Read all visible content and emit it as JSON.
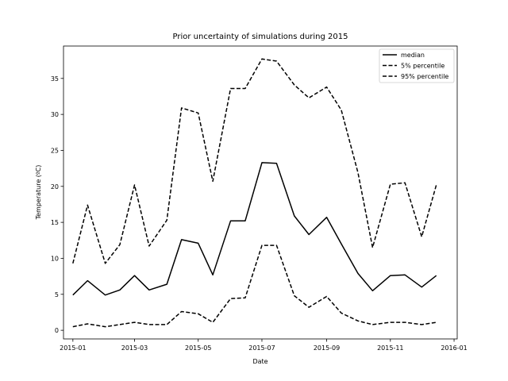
{
  "chart_data": {
    "type": "line",
    "title": "Prior uncertainty of simulations during 2015",
    "xlabel": "Date",
    "ylabel": "Temperature (ºC)",
    "x": [
      "2015-01-01",
      "2015-01-15",
      "2015-02-01",
      "2015-02-15",
      "2015-03-01",
      "2015-03-15",
      "2015-04-01",
      "2015-04-15",
      "2015-05-01",
      "2015-05-15",
      "2015-06-01",
      "2015-06-15",
      "2015-07-01",
      "2015-07-15",
      "2015-08-01",
      "2015-08-15",
      "2015-09-01",
      "2015-09-15",
      "2015-10-01",
      "2015-10-15",
      "2015-11-01",
      "2015-11-15",
      "2015-12-01",
      "2015-12-15"
    ],
    "xlim": [
      "2014-12-23",
      "2016-01-04"
    ],
    "ylim": [
      -1.2,
      39.5
    ],
    "x_ticks": [
      "2015-01",
      "2015-03",
      "2015-05",
      "2015-07",
      "2015-09",
      "2015-11",
      "2016-01"
    ],
    "y_ticks": [
      0,
      5,
      10,
      15,
      20,
      25,
      30,
      35
    ],
    "grid": false,
    "legend_position": "top-right",
    "series": [
      {
        "name": "median",
        "style": "solid",
        "values": [
          4.9,
          6.9,
          4.9,
          5.6,
          7.6,
          5.6,
          6.4,
          12.6,
          12.1,
          7.7,
          15.2,
          15.2,
          23.3,
          23.2,
          15.9,
          13.3,
          15.7,
          12.0,
          7.9,
          5.5,
          7.6,
          7.7,
          6.0,
          7.6
        ]
      },
      {
        "name": "5% percentile",
        "style": "dashed",
        "values": [
          9.3,
          17.4,
          9.3,
          11.9,
          20.2,
          11.7,
          15.3,
          30.9,
          30.2,
          20.7,
          33.6,
          33.6,
          37.7,
          37.4,
          34.1,
          32.3,
          33.8,
          30.6,
          21.9,
          11.5,
          20.3,
          20.5,
          13.0,
          20.2
        ]
      },
      {
        "name": "95% percentile",
        "style": "dashed",
        "values": [
          0.5,
          0.9,
          0.5,
          0.8,
          1.1,
          0.8,
          0.8,
          2.6,
          2.3,
          1.1,
          4.4,
          4.5,
          11.8,
          11.8,
          4.8,
          3.2,
          4.7,
          2.4,
          1.3,
          0.8,
          1.1,
          1.1,
          0.8,
          1.1
        ]
      }
    ],
    "colors": {
      "line": "#000000",
      "frame": "#000000",
      "background": "#ffffff"
    }
  }
}
